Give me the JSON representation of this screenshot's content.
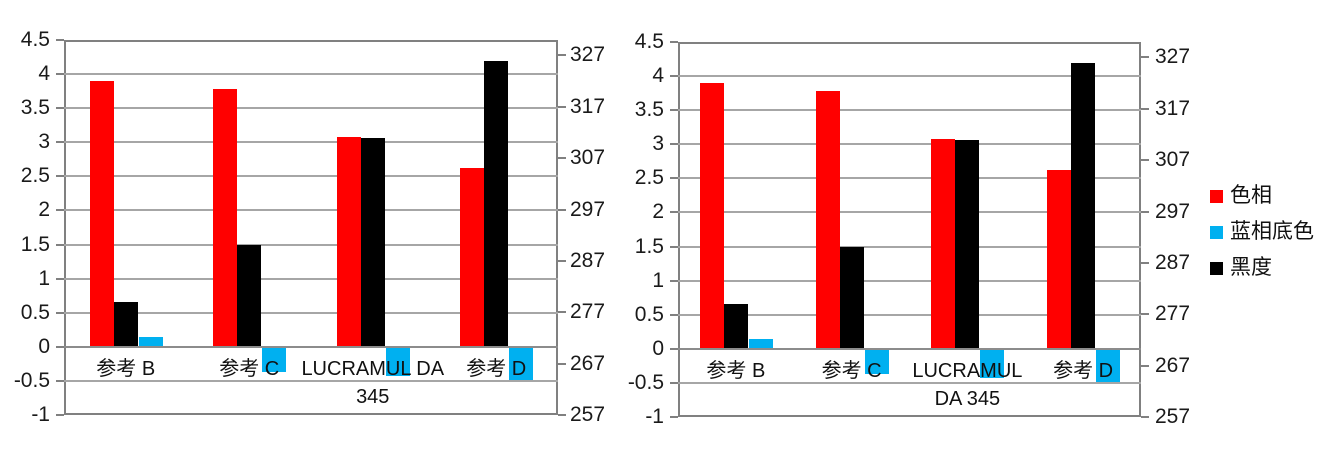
{
  "colors": {
    "hue_red": "#ff0000",
    "blue_undertone": "#00b0f0",
    "blackness": "#000000",
    "gridline": "#a6a6a6",
    "axis_border": "#808080",
    "text": "#111111"
  },
  "legend": {
    "items": [
      {
        "key": "hue",
        "label": "色相",
        "color": "#ff0000"
      },
      {
        "key": "blue-undertone",
        "label": "蓝相底色",
        "color": "#00b0f0"
      },
      {
        "key": "blackness",
        "label": "黑度",
        "color": "#000000"
      }
    ]
  },
  "chart_data": [
    {
      "type": "bar",
      "title": "",
      "categories": [
        "参考 B",
        "参考 C",
        "LUCRAMUL DA 345",
        "参考 D"
      ],
      "category_label_lines": [
        [
          "参考 B"
        ],
        [
          "参考 C"
        ],
        [
          "LUCRAMUL DA",
          "345"
        ],
        [
          "参考 D"
        ]
      ],
      "primary_axis": {
        "min": -1,
        "max": 4.5,
        "step": 0.5,
        "tick_labels": [
          "4.5",
          "4",
          "3.5",
          "3",
          "2.5",
          "2",
          "1.5",
          "1",
          "0.5",
          "0",
          "-0.5",
          "-1"
        ]
      },
      "secondary_axis": {
        "min": 257,
        "max": 330,
        "step": 10,
        "tick_labels": [
          "327",
          "317",
          "307",
          "297",
          "287",
          "277",
          "267",
          "257"
        ]
      },
      "grid": true,
      "legend_position": "none",
      "series": [
        {
          "key": "hue",
          "name": "色相",
          "color": "#ff0000",
          "axis": "primary",
          "cluster_index": 0,
          "values": [
            3.9,
            3.78,
            3.08,
            2.63
          ]
        },
        {
          "key": "blue-undertone",
          "name": "蓝相底色",
          "color": "#00b0f0",
          "axis": "primary",
          "cluster_index": 2,
          "values": [
            0.15,
            -0.37,
            -0.43,
            -0.48
          ]
        },
        {
          "key": "blackness",
          "name": "黑度",
          "color": "#000000",
          "axis": "secondary",
          "cluster_index": 1,
          "values": [
            279,
            290,
            311,
            326
          ]
        }
      ]
    },
    {
      "type": "bar",
      "title": "",
      "categories": [
        "参考 B",
        "参考 C",
        "LUCRAMUL DA 345",
        "参考 D"
      ],
      "category_label_lines": [
        [
          "参考 B"
        ],
        [
          "参考 C"
        ],
        [
          "LUCRAMUL",
          "DA 345"
        ],
        [
          "参考 D"
        ]
      ],
      "primary_axis": {
        "min": -1,
        "max": 4.5,
        "step": 0.5,
        "tick_labels": [
          "4.5",
          "4",
          "3.5",
          "3",
          "2.5",
          "2",
          "1.5",
          "1",
          "0.5",
          "0",
          "-0.5",
          "-1"
        ]
      },
      "secondary_axis": {
        "min": 257,
        "max": 330,
        "step": 10,
        "tick_labels": [
          "327",
          "317",
          "307",
          "297",
          "287",
          "277",
          "267",
          "257"
        ]
      },
      "grid": true,
      "legend_position": "right",
      "series": [
        {
          "key": "hue",
          "name": "色相",
          "color": "#ff0000",
          "axis": "primary",
          "cluster_index": 0,
          "values": [
            3.9,
            3.78,
            3.08,
            2.63
          ]
        },
        {
          "key": "blue-undertone",
          "name": "蓝相底色",
          "color": "#00b0f0",
          "axis": "primary",
          "cluster_index": 2,
          "values": [
            0.15,
            -0.37,
            -0.43,
            -0.48
          ]
        },
        {
          "key": "blackness",
          "name": "黑度",
          "color": "#000000",
          "axis": "secondary",
          "cluster_index": 1,
          "values": [
            279,
            290,
            311,
            326
          ]
        }
      ]
    }
  ]
}
